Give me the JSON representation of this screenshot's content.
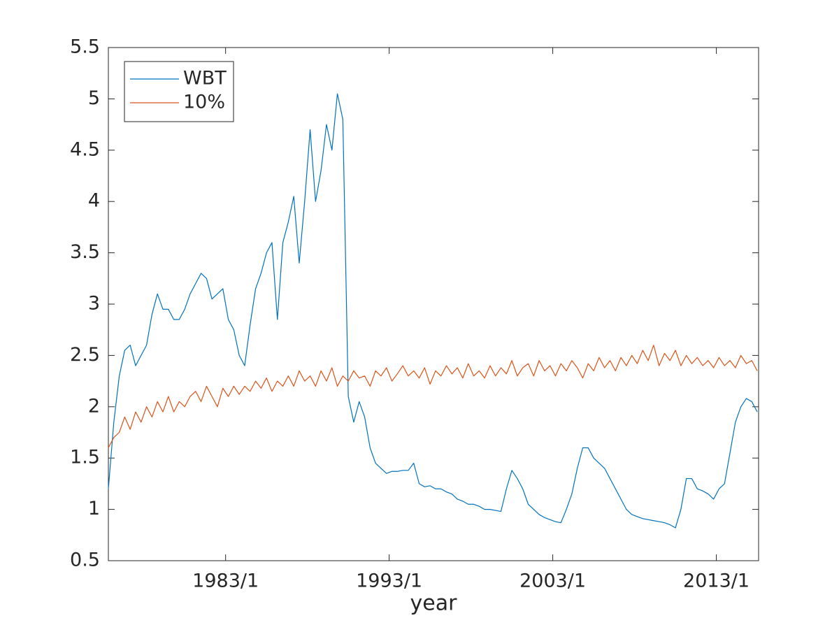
{
  "chart_data": {
    "type": "line",
    "xlabel": "year",
    "x": [
      "1975/11",
      "1976/3",
      "1976/7",
      "1976/11",
      "1977/3",
      "1977/7",
      "1977/11",
      "1978/3",
      "1978/7",
      "1978/11",
      "1979/3",
      "1979/7",
      "1979/11",
      "1980/3",
      "1980/7",
      "1980/11",
      "1981/3",
      "1981/7",
      "1981/11",
      "1982/3",
      "1982/7",
      "1982/11",
      "1983/3",
      "1983/7",
      "1983/11",
      "1984/3",
      "1984/7",
      "1984/11",
      "1985/3",
      "1985/7",
      "1985/11",
      "1986/3",
      "1986/7",
      "1986/11",
      "1987/3",
      "1987/7",
      "1987/11",
      "1988/3",
      "1988/7",
      "1988/11",
      "1989/3",
      "1989/7",
      "1989/11",
      "1990/3",
      "1990/7",
      "1990/11",
      "1991/3",
      "1991/7",
      "1991/11",
      "1992/3",
      "1992/7",
      "1992/11",
      "1993/3",
      "1993/7",
      "1993/11",
      "1994/3",
      "1994/7",
      "1994/11",
      "1995/3",
      "1995/7",
      "1995/11",
      "1996/3",
      "1996/7",
      "1996/11",
      "1997/3",
      "1997/7",
      "1997/11",
      "1998/3",
      "1998/7",
      "1998/11",
      "1999/3",
      "1999/7",
      "1999/11",
      "2000/3",
      "2000/7",
      "2000/11",
      "2001/3",
      "2001/7",
      "2001/11",
      "2002/3",
      "2002/7",
      "2002/11",
      "2003/3",
      "2003/7",
      "2003/11",
      "2004/3",
      "2004/7",
      "2004/11",
      "2005/3",
      "2005/7",
      "2005/11",
      "2006/3",
      "2006/7",
      "2006/11",
      "2007/3",
      "2007/7",
      "2007/11",
      "2008/3",
      "2008/7",
      "2008/11",
      "2009/3",
      "2009/7",
      "2009/11",
      "2010/3",
      "2010/7",
      "2010/11",
      "2011/3",
      "2011/7",
      "2011/11",
      "2012/3",
      "2012/7",
      "2012/11",
      "2013/3",
      "2013/7",
      "2013/11",
      "2014/3",
      "2014/7",
      "2014/11",
      "2015/3",
      "2015/7"
    ],
    "series": [
      {
        "name": "WBT",
        "color": "#0072BD",
        "values": [
          1.2,
          1.85,
          2.3,
          2.55,
          2.6,
          2.4,
          2.5,
          2.6,
          2.9,
          3.1,
          2.95,
          2.95,
          2.85,
          2.85,
          2.95,
          3.1,
          3.2,
          3.3,
          3.25,
          3.05,
          3.1,
          3.15,
          2.85,
          2.75,
          2.5,
          2.4,
          2.8,
          3.15,
          3.3,
          3.5,
          3.6,
          2.85,
          3.6,
          3.8,
          4.05,
          3.4,
          4.0,
          4.7,
          4.0,
          4.3,
          4.75,
          4.5,
          5.05,
          4.8,
          2.1,
          1.85,
          2.05,
          1.9,
          1.6,
          1.45,
          1.4,
          1.35,
          1.37,
          1.37,
          1.38,
          1.38,
          1.45,
          1.25,
          1.22,
          1.23,
          1.2,
          1.2,
          1.17,
          1.15,
          1.1,
          1.08,
          1.05,
          1.05,
          1.03,
          1.0,
          1.0,
          0.99,
          0.98,
          1.2,
          1.38,
          1.3,
          1.2,
          1.05,
          1.0,
          0.95,
          0.92,
          0.9,
          0.88,
          0.87,
          1.0,
          1.15,
          1.4,
          1.6,
          1.6,
          1.5,
          1.45,
          1.4,
          1.3,
          1.2,
          1.1,
          1.0,
          0.95,
          0.93,
          0.91,
          0.9,
          0.89,
          0.88,
          0.87,
          0.85,
          0.82,
          1.0,
          1.3,
          1.3,
          1.2,
          1.18,
          1.15,
          1.1,
          1.2,
          1.25,
          1.55,
          1.85,
          2.0,
          2.08,
          2.05,
          1.95
        ]
      },
      {
        "name": "10%",
        "color": "#D95319",
        "values": [
          1.6,
          1.7,
          1.75,
          1.9,
          1.78,
          1.95,
          1.85,
          2.0,
          1.9,
          2.05,
          1.95,
          2.1,
          1.95,
          2.05,
          2.0,
          2.1,
          2.15,
          2.05,
          2.2,
          2.1,
          2.0,
          2.18,
          2.1,
          2.2,
          2.12,
          2.2,
          2.15,
          2.25,
          2.18,
          2.28,
          2.15,
          2.25,
          2.2,
          2.3,
          2.2,
          2.35,
          2.25,
          2.3,
          2.2,
          2.35,
          2.25,
          2.38,
          2.2,
          2.3,
          2.25,
          2.35,
          2.28,
          2.3,
          2.2,
          2.35,
          2.3,
          2.38,
          2.25,
          2.32,
          2.4,
          2.3,
          2.35,
          2.28,
          2.38,
          2.22,
          2.35,
          2.3,
          2.4,
          2.32,
          2.38,
          2.28,
          2.42,
          2.3,
          2.35,
          2.28,
          2.4,
          2.3,
          2.38,
          2.32,
          2.45,
          2.3,
          2.38,
          2.42,
          2.3,
          2.45,
          2.35,
          2.4,
          2.3,
          2.42,
          2.35,
          2.45,
          2.38,
          2.28,
          2.42,
          2.35,
          2.48,
          2.38,
          2.45,
          2.35,
          2.48,
          2.4,
          2.5,
          2.42,
          2.55,
          2.45,
          2.6,
          2.4,
          2.52,
          2.45,
          2.55,
          2.4,
          2.5,
          2.42,
          2.48,
          2.4,
          2.45,
          2.38,
          2.48,
          2.4,
          2.45,
          2.38,
          2.5,
          2.42,
          2.45,
          2.35
        ]
      }
    ],
    "xlim": [
      "1975/11",
      "2015/8"
    ],
    "xticks": [
      "1983/1",
      "1993/1",
      "2003/1",
      "2013/1"
    ],
    "ylim": [
      0.5,
      5.5
    ],
    "yticks": [
      0.5,
      1,
      1.5,
      2,
      2.5,
      3,
      3.5,
      4,
      4.5,
      5,
      5.5
    ],
    "legend": "northwest"
  }
}
